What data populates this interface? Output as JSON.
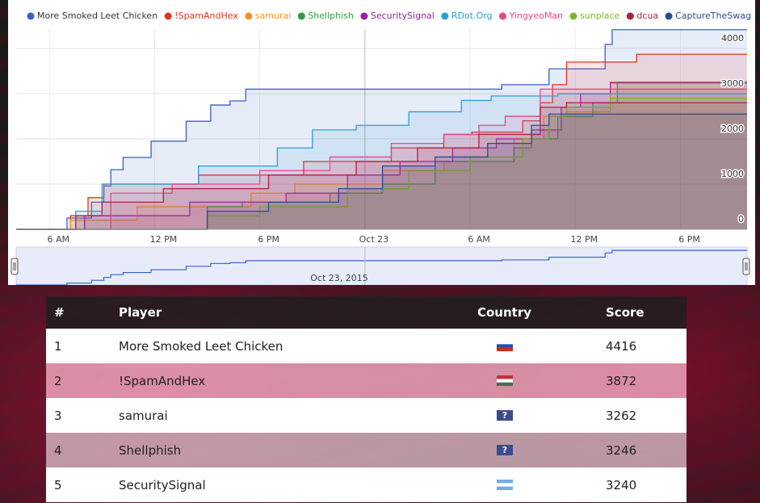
{
  "chart_data": {
    "type": "step-area",
    "series": [
      {
        "name": "More Smoked Leet Chicken",
        "color": "#3a5fcd",
        "x": [
          6.5,
          7.0,
          8.4,
          9.1,
          9.5,
          10.2,
          11.8,
          13.8,
          15.2,
          16.3,
          17.2,
          31.8,
          34.5,
          37.7,
          38.1
        ],
        "values": [
          0,
          250,
          600,
          960,
          1320,
          1590,
          1950,
          2390,
          2750,
          2840,
          3100,
          3200,
          3550,
          4090,
          4416
        ]
      },
      {
        "name": "!SpamAndHex",
        "color": "#e0341e",
        "x": [
          6.5,
          7.2,
          8.2,
          9.1,
          14.5,
          20.5,
          25.5,
          28.5,
          30.1,
          33.0,
          34.0,
          34.7,
          35.5,
          39.5
        ],
        "values": [
          0,
          300,
          700,
          1000,
          1200,
          1500,
          1800,
          2100,
          2150,
          2400,
          2800,
          3200,
          3700,
          3872
        ]
      },
      {
        "name": "samurai",
        "color": "#f7941d",
        "x": [
          6.5,
          7.2,
          11.0,
          17.5,
          20.0,
          25.0,
          28.5,
          32.5,
          34.2,
          35.5,
          38.0
        ],
        "values": [
          0,
          200,
          500,
          800,
          1000,
          1300,
          1500,
          2000,
          2500,
          2600,
          3262
        ]
      },
      {
        "name": "Shellphish",
        "color": "#2e9e3b",
        "x": [
          14.5,
          15.0,
          17.0,
          22.0,
          25.0,
          28.0,
          32.5,
          33.5,
          35.0,
          37.0,
          38.4
        ],
        "values": [
          0,
          500,
          600,
          800,
          1000,
          1500,
          1800,
          2000,
          2500,
          2800,
          3246
        ]
      },
      {
        "name": "SecuritySignal",
        "color": "#9b1ea0",
        "x": [
          6.5,
          8.0,
          14.0,
          19.5,
          23.0,
          26.0,
          29.0,
          31.5,
          33.5,
          35.2,
          36.3,
          38.0
        ],
        "values": [
          0,
          300,
          600,
          800,
          1200,
          1500,
          1800,
          2000,
          2200,
          2700,
          3000,
          3240
        ]
      },
      {
        "name": "RDot.Org",
        "color": "#2a9fd6",
        "x": [
          6.5,
          7.5,
          9.0,
          14.5,
          19.0,
          21.0,
          23.5,
          26.5,
          29.5,
          31.2,
          35.0
        ],
        "values": [
          0,
          400,
          1000,
          1400,
          1800,
          2200,
          2300,
          2600,
          2850,
          2950,
          3000
        ]
      },
      {
        "name": "YingyeoMan",
        "color": "#e8468c",
        "x": [
          8.0,
          9.5,
          13.0,
          18.0,
          22.0,
          25.5,
          28.5,
          30.5,
          32.0,
          34.0
        ],
        "values": [
          0,
          800,
          1000,
          1300,
          1600,
          1900,
          2100,
          2300,
          2500,
          3100
        ]
      },
      {
        "name": "sunplace",
        "color": "#7ab72a",
        "x": [
          14.0,
          15.0,
          18.0,
          23.0,
          26.5,
          30.0,
          33.0,
          34.5,
          35.5,
          38.0
        ],
        "values": [
          0,
          300,
          500,
          900,
          1300,
          1600,
          2000,
          2500,
          2700,
          2900
        ]
      },
      {
        "name": "dcua",
        "color": "#b21f3a",
        "x": [
          6.5,
          7.5,
          9.0,
          12.5,
          18.5,
          23.5,
          27.0,
          30.5,
          34.0,
          35.5
        ],
        "values": [
          0,
          300,
          600,
          900,
          1200,
          1500,
          1800,
          2100,
          2700,
          2800
        ]
      },
      {
        "name": "CaptureTheSwag",
        "color": "#2b4c8c",
        "x": [
          14.0,
          15.0,
          18.5,
          22.5,
          25.0,
          28.0,
          31.0,
          33.5,
          34.5
        ],
        "values": [
          0,
          400,
          600,
          900,
          1400,
          1600,
          1900,
          2300,
          2550
        ]
      }
    ],
    "xlim": [
      4.1,
      45.8
    ],
    "xticks": [
      {
        "value": 6,
        "label": "6 AM"
      },
      {
        "value": 12,
        "label": "12 PM"
      },
      {
        "value": 18,
        "label": "6 PM"
      },
      {
        "value": 24,
        "label": "Oct 23"
      },
      {
        "value": 30,
        "label": "6 AM"
      },
      {
        "value": 36,
        "label": "12 PM"
      },
      {
        "value": 42,
        "label": "6 PM"
      }
    ],
    "ylim": [
      0,
      4430
    ],
    "yticks": [
      0,
      1000,
      2000,
      3000,
      4000
    ],
    "grid": true,
    "navigator_label": "Oct 23, 2015"
  },
  "table": {
    "headers": [
      "#",
      "Player",
      "Country",
      "Score"
    ],
    "rows": [
      {
        "rank": 1,
        "player": "More Smoked Leet Chicken",
        "score": 4416
      },
      {
        "rank": 2,
        "player": "!SpamAndHex",
        "score": 3872
      },
      {
        "rank": 3,
        "player": "samurai",
        "country": "?",
        "score": 3262
      },
      {
        "rank": 4,
        "player": "Shellphish",
        "country": "?",
        "score": 3246
      },
      {
        "rank": 5,
        "player": "SecuritySignal",
        "score": 3240
      }
    ]
  }
}
